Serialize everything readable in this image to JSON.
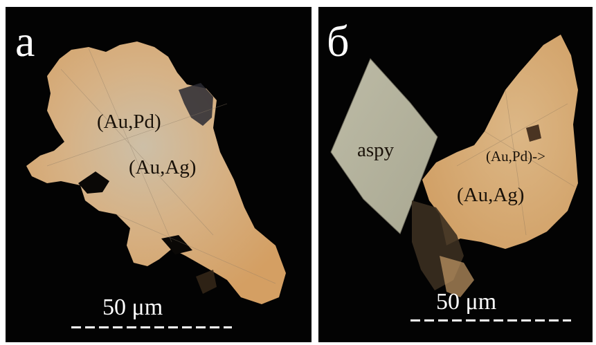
{
  "panel_a": {
    "letter": "а",
    "labels": {
      "au_pd": "(Au,Pd)",
      "au_ag": "(Au,Ag)"
    },
    "scale_bar": "50 μm"
  },
  "panel_b": {
    "letter": "б",
    "labels": {
      "aspy": "aspy",
      "au_pd": "(Au,Pd)->",
      "au_ag": "(Au,Ag)"
    },
    "scale_bar": "50 μm"
  },
  "colors": {
    "background": "#030303",
    "gold_grain": "#d9ad78",
    "gold_grain_pale": "#cdbfa7",
    "arsenopyrite": "#b3b29c",
    "text_dark": "#1a1209",
    "text_light": "#ffffff"
  }
}
